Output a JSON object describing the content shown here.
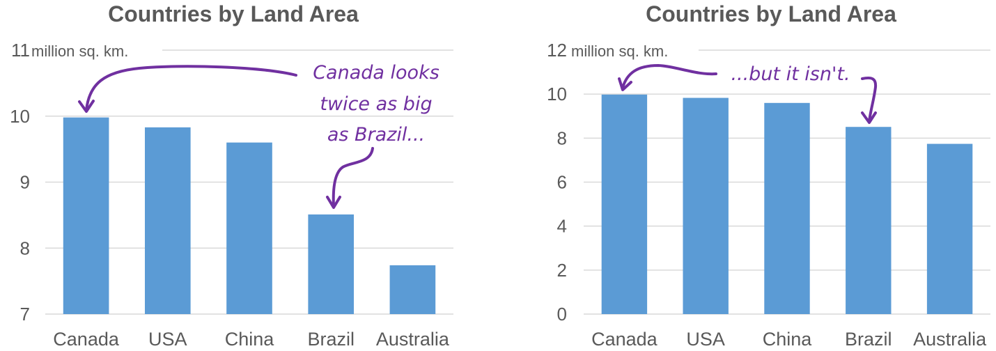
{
  "chart_data": [
    {
      "type": "bar",
      "title": "Countries by Land Area",
      "unit_label": "million sq. km.",
      "categories": [
        "Canada",
        "USA",
        "China",
        "Brazil",
        "Australia"
      ],
      "values": [
        9.98,
        9.83,
        9.6,
        8.51,
        7.74
      ],
      "ylim": [
        7,
        11
      ],
      "yticks": [
        "7",
        "8",
        "9",
        "10",
        "11"
      ],
      "grid": true,
      "annotations": [
        {
          "lines": [
            "Canada looks",
            "twice as big",
            "as Brazil..."
          ],
          "color": "#7030a0"
        }
      ]
    },
    {
      "type": "bar",
      "title": "Countries by Land Area",
      "unit_label": "million sq. km.",
      "categories": [
        "Canada",
        "USA",
        "China",
        "Brazil",
        "Australia"
      ],
      "values": [
        9.98,
        9.83,
        9.6,
        8.51,
        7.74
      ],
      "ylim": [
        0,
        12
      ],
      "yticks": [
        "0",
        "2",
        "4",
        "6",
        "8",
        "10",
        "12"
      ],
      "grid": true,
      "annotations": [
        {
          "lines": [
            "...but it isn't."
          ],
          "color": "#7030a0"
        }
      ]
    }
  ],
  "colors": {
    "bar": "#5b9bd5",
    "annotation": "#7030a0",
    "text": "#595959",
    "grid": "#d9d9d9"
  }
}
